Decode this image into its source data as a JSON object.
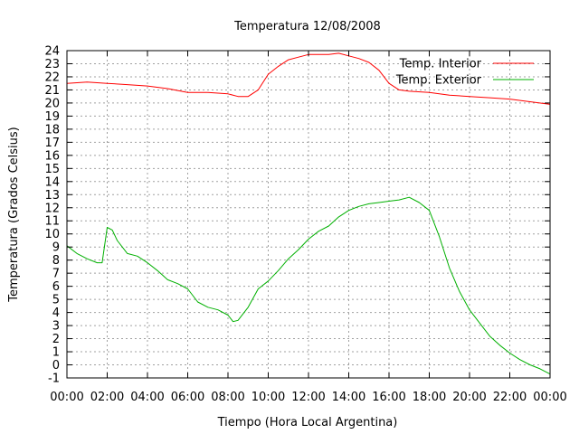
{
  "chart_data": {
    "type": "line",
    "title": "Temperatura 12/08/2008",
    "xlabel": "Tiempo (Hora Local Argentina)",
    "ylabel": "Temperatura (Grados Celsius)",
    "xlim": [
      0,
      24
    ],
    "ylim": [
      -1,
      24
    ],
    "grid": true,
    "legend_position": "top-right",
    "x_ticks": [
      "00:00",
      "02:00",
      "04:00",
      "06:00",
      "08:00",
      "10:00",
      "12:00",
      "14:00",
      "16:00",
      "18:00",
      "20:00",
      "22:00",
      "00:00"
    ],
    "y_ticks": [
      "-1",
      "0",
      "1",
      "2",
      "3",
      "4",
      "5",
      "6",
      "7",
      "8",
      "9",
      "10",
      "11",
      "12",
      "13",
      "14",
      "15",
      "16",
      "17",
      "18",
      "19",
      "20",
      "21",
      "22",
      "23",
      "24"
    ],
    "series": [
      {
        "name": "Temp. Interior",
        "color": "#ff0000",
        "x": [
          0,
          1,
          2,
          3,
          4,
          5,
          6,
          7,
          8,
          8.5,
          9,
          9.5,
          10,
          10.5,
          11,
          11.5,
          12,
          12.5,
          13,
          13.5,
          14,
          14.5,
          15,
          15.5,
          16,
          16.5,
          17,
          18,
          19,
          20,
          21,
          22,
          23,
          24
        ],
        "y": [
          21.5,
          21.6,
          21.5,
          21.4,
          21.3,
          21.1,
          20.8,
          20.8,
          20.7,
          20.5,
          20.5,
          21.0,
          22.2,
          22.8,
          23.3,
          23.5,
          23.7,
          23.7,
          23.7,
          23.8,
          23.6,
          23.4,
          23.1,
          22.5,
          21.5,
          21.0,
          20.9,
          20.8,
          20.6,
          20.5,
          20.4,
          20.3,
          20.1,
          19.9
        ]
      },
      {
        "name": "Temp. Exterior",
        "color": "#00b000",
        "x": [
          0,
          0.5,
          1,
          1.5,
          1.75,
          2,
          2.25,
          2.5,
          3,
          3.5,
          4,
          4.5,
          5,
          5.5,
          6,
          6.5,
          7,
          7.5,
          8,
          8.25,
          8.5,
          9,
          9.5,
          10,
          10.5,
          11,
          11.5,
          12,
          12.5,
          13,
          13.5,
          14,
          14.5,
          15,
          15.5,
          16,
          16.5,
          17,
          17.5,
          18,
          18.5,
          19,
          19.5,
          20,
          20.5,
          21,
          21.5,
          22,
          22.5,
          23,
          23.5,
          24
        ],
        "y": [
          9.1,
          8.5,
          8.1,
          7.8,
          7.8,
          10.5,
          10.3,
          9.5,
          8.5,
          8.3,
          7.8,
          7.2,
          6.5,
          6.2,
          5.8,
          4.8,
          4.4,
          4.2,
          3.8,
          3.3,
          3.4,
          4.4,
          5.8,
          6.4,
          7.2,
          8.1,
          8.8,
          9.6,
          10.2,
          10.6,
          11.3,
          11.8,
          12.1,
          12.3,
          12.4,
          12.5,
          12.6,
          12.8,
          12.4,
          11.8,
          9.8,
          7.4,
          5.6,
          4.2,
          3.2,
          2.2,
          1.5,
          0.9,
          0.4,
          0.0,
          -0.3,
          -0.7
        ]
      }
    ]
  }
}
